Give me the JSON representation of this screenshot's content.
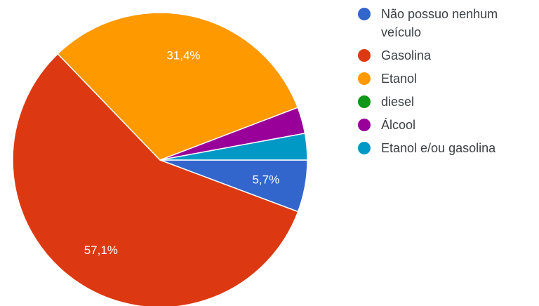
{
  "chart_data": {
    "type": "pie",
    "title": "",
    "slices": [
      {
        "label": "Não possuo nenhum veículo",
        "value": 5.7,
        "display": "5,7%",
        "color": "#3366cc"
      },
      {
        "label": "Gasolina",
        "value": 57.1,
        "display": "57,1%",
        "color": "#dc3912"
      },
      {
        "label": "Etanol",
        "value": 31.4,
        "display": "31,4%",
        "color": "#ff9900"
      },
      {
        "label": "diesel",
        "value": 0,
        "display": "",
        "color": "#109618"
      },
      {
        "label": "Álcool",
        "value": 2.9,
        "display": "",
        "color": "#990099"
      },
      {
        "label": "Etanol e/ou gasolina",
        "value": 2.9,
        "display": "",
        "color": "#0099c6"
      }
    ],
    "legend_position": "right"
  }
}
